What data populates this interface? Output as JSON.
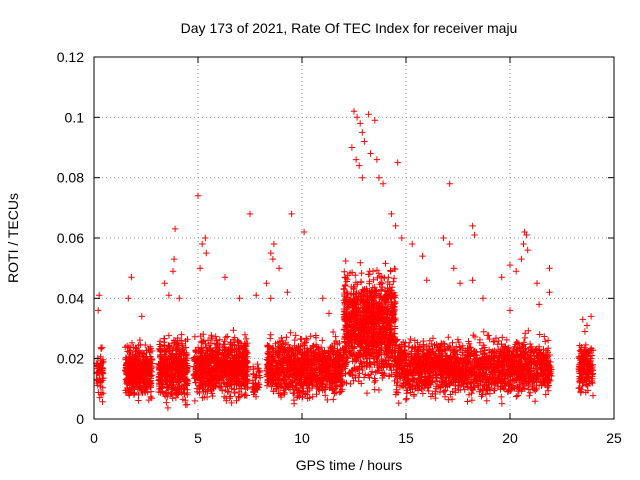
{
  "chart_data": {
    "type": "scatter",
    "title": "Day 173 of 2021, Rate Of TEC Index for receiver maju",
    "xlabel": "GPS time / hours",
    "ylabel": "ROTI / TECUs",
    "xlim": [
      0,
      25
    ],
    "ylim": [
      0,
      0.12
    ],
    "x_ticks": [
      0,
      5,
      10,
      15,
      20,
      25
    ],
    "x_tick_labels": [
      "0",
      "5",
      "10",
      "15",
      "20",
      "25"
    ],
    "y_ticks": [
      0,
      0.02,
      0.04,
      0.06,
      0.08,
      0.1,
      0.12
    ],
    "y_tick_labels": [
      "0",
      "0.02",
      "0.04",
      "0.06",
      "0.08",
      "0.1",
      "0.12"
    ],
    "grid": true,
    "marker": "+",
    "color": "#ff0000",
    "series": [
      {
        "name": "ROTI",
        "segments": [
          {
            "x": [
              0.1,
              0.45
            ],
            "y": [
              0.003,
              0.028
            ],
            "n": 60
          },
          {
            "x": [
              1.5,
              2.8
            ],
            "y": [
              0.004,
              0.028
            ],
            "n": 420
          },
          {
            "x": [
              3.1,
              4.5
            ],
            "y": [
              0.003,
              0.03
            ],
            "n": 450
          },
          {
            "x": [
              4.8,
              7.4
            ],
            "y": [
              0.004,
              0.031
            ],
            "n": 780
          },
          {
            "x": [
              7.6,
              8.0
            ],
            "y": [
              0.005,
              0.02
            ],
            "n": 40
          },
          {
            "x": [
              8.3,
              12.0
            ],
            "y": [
              0.004,
              0.03
            ],
            "n": 1000
          },
          {
            "x": [
              12.0,
              14.5
            ],
            "y": [
              0.006,
              0.055
            ],
            "n": 1100
          },
          {
            "x": [
              14.5,
              22.0
            ],
            "y": [
              0.004,
              0.03
            ],
            "n": 1700
          },
          {
            "x": [
              23.3,
              24.0
            ],
            "y": [
              0.005,
              0.028
            ],
            "n": 160
          }
        ],
        "outliers": [
          {
            "x": 0.25,
            "y": 0.041
          },
          {
            "x": 0.2,
            "y": 0.036
          },
          {
            "x": 1.65,
            "y": 0.04
          },
          {
            "x": 1.8,
            "y": 0.047
          },
          {
            "x": 2.3,
            "y": 0.034
          },
          {
            "x": 3.4,
            "y": 0.045
          },
          {
            "x": 3.6,
            "y": 0.041
          },
          {
            "x": 3.8,
            "y": 0.049
          },
          {
            "x": 3.85,
            "y": 0.053
          },
          {
            "x": 3.9,
            "y": 0.063
          },
          {
            "x": 4.1,
            "y": 0.04
          },
          {
            "x": 5.0,
            "y": 0.074
          },
          {
            "x": 5.2,
            "y": 0.058
          },
          {
            "x": 5.35,
            "y": 0.06
          },
          {
            "x": 5.1,
            "y": 0.05
          },
          {
            "x": 5.4,
            "y": 0.055
          },
          {
            "x": 6.3,
            "y": 0.047
          },
          {
            "x": 7.0,
            "y": 0.04
          },
          {
            "x": 7.5,
            "y": 0.068
          },
          {
            "x": 7.8,
            "y": 0.041
          },
          {
            "x": 8.3,
            "y": 0.045
          },
          {
            "x": 8.5,
            "y": 0.055
          },
          {
            "x": 8.6,
            "y": 0.053
          },
          {
            "x": 8.65,
            "y": 0.058
          },
          {
            "x": 8.5,
            "y": 0.04
          },
          {
            "x": 8.9,
            "y": 0.05
          },
          {
            "x": 9.5,
            "y": 0.068
          },
          {
            "x": 10.1,
            "y": 0.062
          },
          {
            "x": 9.3,
            "y": 0.042
          },
          {
            "x": 11.0,
            "y": 0.04
          },
          {
            "x": 11.3,
            "y": 0.035
          },
          {
            "x": 12.5,
            "y": 0.102
          },
          {
            "x": 12.65,
            "y": 0.1
          },
          {
            "x": 12.8,
            "y": 0.098
          },
          {
            "x": 12.9,
            "y": 0.095
          },
          {
            "x": 13.2,
            "y": 0.101
          },
          {
            "x": 13.5,
            "y": 0.099
          },
          {
            "x": 12.4,
            "y": 0.09
          },
          {
            "x": 12.6,
            "y": 0.086
          },
          {
            "x": 12.75,
            "y": 0.084
          },
          {
            "x": 13.0,
            "y": 0.092
          },
          {
            "x": 13.3,
            "y": 0.088
          },
          {
            "x": 13.6,
            "y": 0.086
          },
          {
            "x": 12.9,
            "y": 0.08
          },
          {
            "x": 13.7,
            "y": 0.08
          },
          {
            "x": 13.9,
            "y": 0.078
          },
          {
            "x": 14.3,
            "y": 0.068
          },
          {
            "x": 14.6,
            "y": 0.085
          },
          {
            "x": 14.5,
            "y": 0.064
          },
          {
            "x": 14.8,
            "y": 0.06
          },
          {
            "x": 15.3,
            "y": 0.058
          },
          {
            "x": 15.8,
            "y": 0.054
          },
          {
            "x": 16.0,
            "y": 0.046
          },
          {
            "x": 16.8,
            "y": 0.06
          },
          {
            "x": 17.1,
            "y": 0.078
          },
          {
            "x": 17.1,
            "y": 0.058
          },
          {
            "x": 17.3,
            "y": 0.05
          },
          {
            "x": 17.6,
            "y": 0.045
          },
          {
            "x": 18.2,
            "y": 0.064
          },
          {
            "x": 18.3,
            "y": 0.061
          },
          {
            "x": 18.2,
            "y": 0.046
          },
          {
            "x": 18.7,
            "y": 0.04
          },
          {
            "x": 19.6,
            "y": 0.047
          },
          {
            "x": 20.0,
            "y": 0.051
          },
          {
            "x": 20.3,
            "y": 0.049
          },
          {
            "x": 20.55,
            "y": 0.053
          },
          {
            "x": 20.65,
            "y": 0.058
          },
          {
            "x": 20.7,
            "y": 0.062
          },
          {
            "x": 20.8,
            "y": 0.061
          },
          {
            "x": 20.85,
            "y": 0.056
          },
          {
            "x": 21.3,
            "y": 0.045
          },
          {
            "x": 21.9,
            "y": 0.05
          },
          {
            "x": 21.9,
            "y": 0.042
          },
          {
            "x": 20.0,
            "y": 0.036
          },
          {
            "x": 21.4,
            "y": 0.038
          },
          {
            "x": 23.5,
            "y": 0.033
          },
          {
            "x": 23.9,
            "y": 0.034
          },
          {
            "x": 23.7,
            "y": 0.031
          },
          {
            "x": 23.6,
            "y": 0.029
          }
        ]
      }
    ]
  }
}
